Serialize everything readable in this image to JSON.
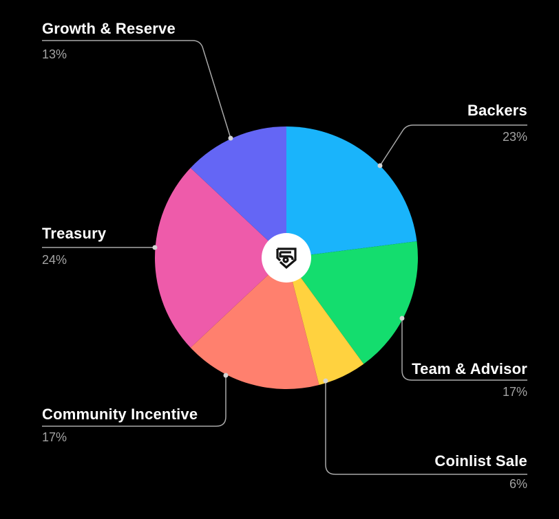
{
  "chart_data": {
    "type": "pie",
    "title": "",
    "center_icon": "shield-s-logo-icon",
    "slices": [
      {
        "label": "Backers",
        "value": 23,
        "display": "23%",
        "color": "#1AB4FB"
      },
      {
        "label": "Team & Advisor",
        "value": 17,
        "display": "17%",
        "color": "#14DD6E"
      },
      {
        "label": "Coinlist Sale",
        "value": 6,
        "display": "6%",
        "color": "#FFD23F"
      },
      {
        "label": "Community Incentive",
        "value": 17,
        "display": "17%",
        "color": "#FF806E"
      },
      {
        "label": "Treasury",
        "value": 24,
        "display": "24%",
        "color": "#EE5BAA"
      },
      {
        "label": "Growth & Reserve",
        "value": 13,
        "display": "13%",
        "color": "#6466F5"
      }
    ],
    "start_angle_deg": 0,
    "direction": "clockwise",
    "background": "#000000",
    "leader_line_color": "#a9a9a9"
  }
}
